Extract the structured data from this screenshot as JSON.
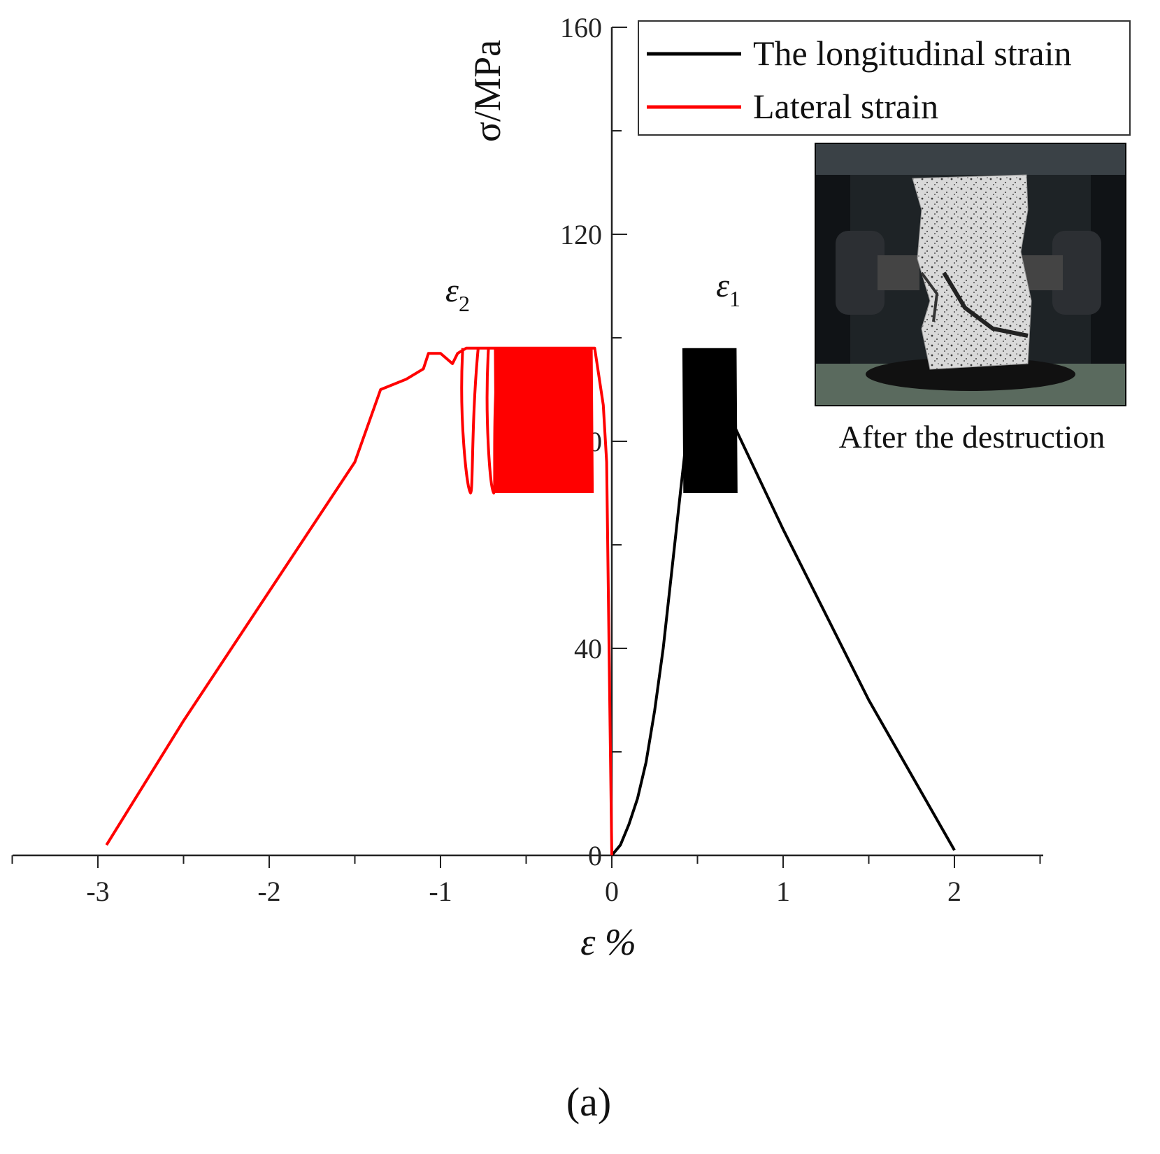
{
  "chart_data": {
    "type": "line",
    "title": "",
    "xlabel": "ε %",
    "ylabel": "σ/MPa",
    "xlim": [
      -3.5,
      2.5
    ],
    "ylim": [
      0,
      160
    ],
    "xticks": [
      -3,
      -2,
      -1,
      0,
      1,
      2
    ],
    "yticks": [
      0,
      40,
      80,
      120,
      160
    ],
    "legend_position": "top-right",
    "series": [
      {
        "name": "The longitudinal strain",
        "color": "#000000",
        "points": [
          [
            0,
            0
          ],
          [
            0.05,
            2
          ],
          [
            0.1,
            6
          ],
          [
            0.15,
            11
          ],
          [
            0.2,
            18
          ],
          [
            0.25,
            28
          ],
          [
            0.3,
            40
          ],
          [
            0.35,
            55
          ],
          [
            0.4,
            70
          ],
          [
            0.43,
            79
          ],
          [
            0.45,
            84
          ],
          [
            0.7,
            84
          ],
          [
            1.0,
            63
          ],
          [
            1.5,
            30
          ],
          [
            2.0,
            1
          ]
        ],
        "cycle_band": {
          "x_min": 0.42,
          "x_max": 0.72,
          "y_min": 70,
          "y_max": 98
        }
      },
      {
        "name": "Lateral strain",
        "color": "#ff0000",
        "points": [
          [
            -2.95,
            2
          ],
          [
            -2.5,
            26
          ],
          [
            -2.0,
            51
          ],
          [
            -1.5,
            76
          ],
          [
            -1.35,
            90
          ],
          [
            -1.2,
            92
          ],
          [
            -1.1,
            94
          ],
          [
            -1.07,
            97
          ],
          [
            -1.0,
            97
          ],
          [
            -0.93,
            95
          ],
          [
            -0.9,
            97
          ],
          [
            -0.85,
            98
          ],
          [
            -0.8,
            98
          ],
          [
            -0.1,
            98
          ],
          [
            -0.05,
            87
          ],
          [
            -0.03,
            76
          ],
          [
            -0.02,
            50
          ],
          [
            -0.01,
            25
          ],
          [
            0,
            0
          ]
        ],
        "cycle_band": {
          "x_min": -0.68,
          "x_max": -0.12,
          "y_min": 70,
          "y_max": 98
        },
        "loops": [
          {
            "x_left": -0.87,
            "x_right": -0.78,
            "y_top": 98,
            "y_bottom": 70
          },
          {
            "x_left": -0.72,
            "x_right": -0.66,
            "y_top": 98,
            "y_bottom": 70
          }
        ]
      }
    ],
    "annotations": [
      {
        "symbol": "ε",
        "subscript": "2",
        "x": -0.9,
        "y": 107
      },
      {
        "symbol": "ε",
        "subscript": "1",
        "x": 0.68,
        "y": 108
      }
    ]
  },
  "inset": {
    "caption": "After the destruction"
  },
  "panel_label": "(a)"
}
